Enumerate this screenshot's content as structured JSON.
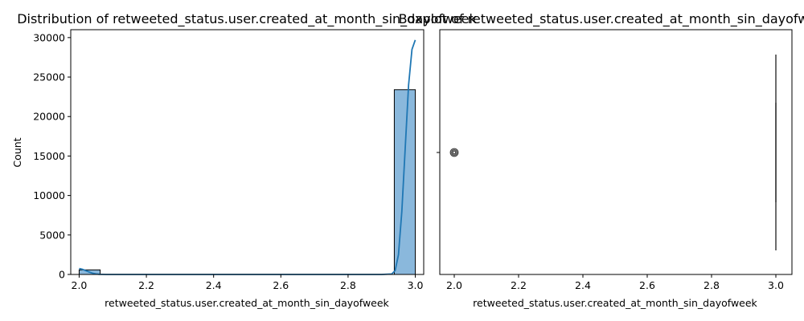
{
  "chart_data": [
    {
      "type": "histogram",
      "title": "Distribution of retweeted_status.user.created_at_month_sin_dayofweek",
      "xlabel": "retweeted_status.user.created_at_month_sin_dayofweek",
      "ylabel": "Count",
      "xlim": [
        1.975,
        3.025
      ],
      "ylim": [
        0,
        31000
      ],
      "xticks": [
        2.0,
        2.2,
        2.4,
        2.6,
        2.8,
        3.0
      ],
      "xtick_labels": [
        "2.0",
        "2.2",
        "2.4",
        "2.6",
        "2.8",
        "3.0"
      ],
      "yticks": [
        0,
        5000,
        10000,
        15000,
        20000,
        25000,
        30000
      ],
      "ytick_labels": [
        "0",
        "5000",
        "10000",
        "15000",
        "20000",
        "25000",
        "30000"
      ],
      "bins": [
        {
          "x0": 2.0,
          "x1": 2.0625,
          "count": 580
        },
        {
          "x0": 2.9375,
          "x1": 3.0,
          "count": 23400
        }
      ],
      "kde": {
        "x": [
          2.0,
          2.01,
          2.02,
          2.03,
          2.04,
          2.05,
          2.06,
          2.08,
          2.1,
          2.2,
          2.4,
          2.6,
          2.8,
          2.9,
          2.93,
          2.94,
          2.95,
          2.96,
          2.97,
          2.98,
          2.99,
          3.0
        ],
        "y": [
          750,
          650,
          480,
          300,
          150,
          60,
          20,
          5,
          0,
          0,
          0,
          0,
          0,
          0,
          60,
          500,
          2500,
          8000,
          16000,
          24000,
          28500,
          29700
        ]
      },
      "colors": {
        "bar_fill": "#8ab8dc",
        "bar_edge": "#000000",
        "kde_line": "#1f77b4"
      }
    },
    {
      "type": "boxplot",
      "title": "Boxplot of retweeted_status.user.created_at_month_sin_dayofweek",
      "xlabel": "retweeted_status.user.created_at_month_sin_dayofweek",
      "xlim": [
        1.955,
        3.05
      ],
      "xticks": [
        2.0,
        2.2,
        2.4,
        2.6,
        2.8,
        3.0
      ],
      "xtick_labels": [
        "2.0",
        "2.2",
        "2.4",
        "2.6",
        "2.8",
        "3.0"
      ],
      "box": {
        "whisker_low": 3.0,
        "q1": 3.0,
        "median": 3.0,
        "q3": 3.0,
        "whisker_high": 3.0
      },
      "outliers": [
        2.0
      ],
      "colors": {
        "box_line": "#3d3d3d",
        "outlier": "#3d3d3d"
      }
    }
  ]
}
